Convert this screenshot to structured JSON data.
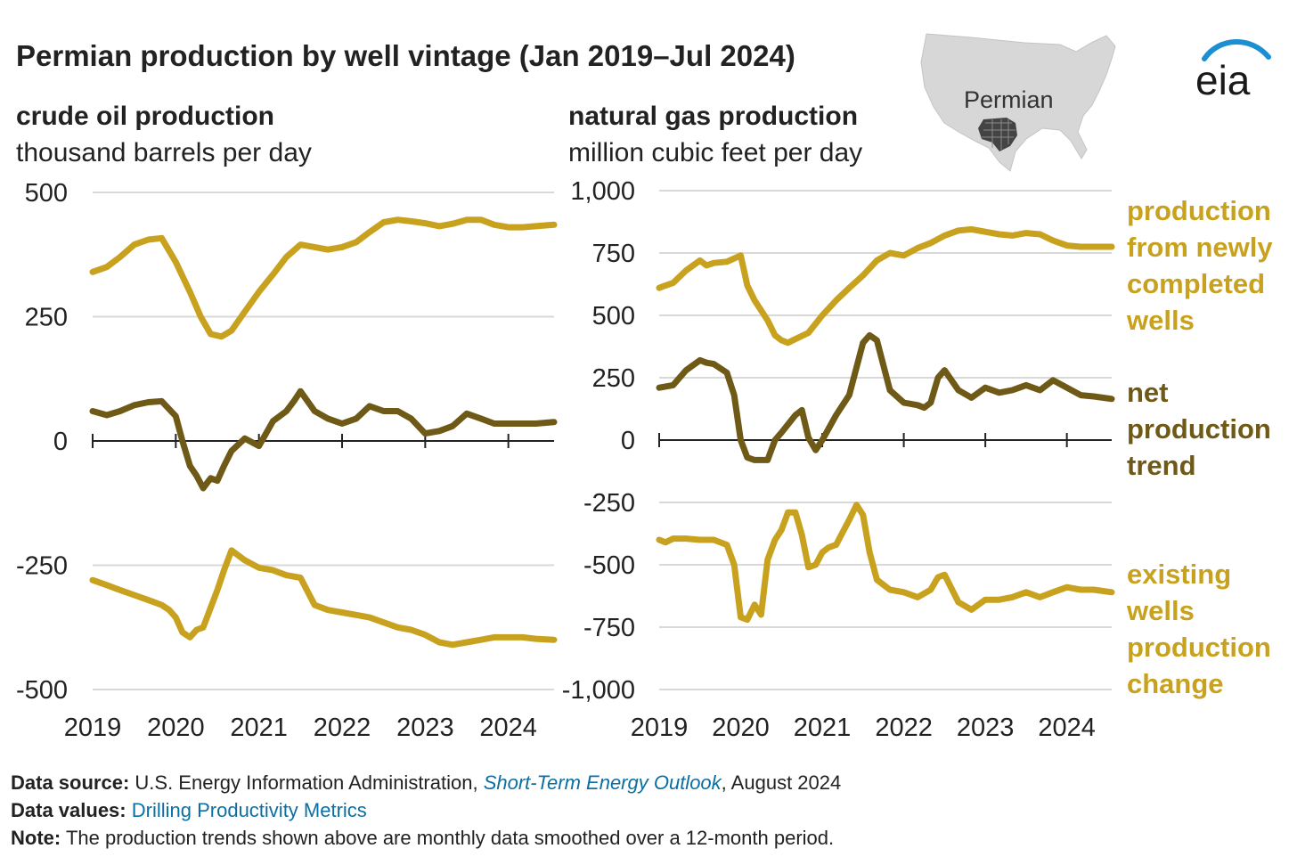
{
  "title": "Permian production by well vintage (Jan 2019–Jul 2024)",
  "logo_text": "eia",
  "map_label": "Permian",
  "legend": {
    "new_wells": "production from newly completed wells",
    "net": "net production trend",
    "existing": "existing wells production change"
  },
  "colors": {
    "new_wells": "#C8A21F",
    "net": "#6E5A16",
    "existing": "#C8A21F",
    "grid": "#d9d9d9",
    "axis": "#222222",
    "link": "#0B6FA4"
  },
  "footnotes": {
    "source_label": "Data source:",
    "source_text_1": "U.S. Energy Information Administration,",
    "source_link": "Short-Term Energy Outlook",
    "source_text_2": ", August 2024",
    "values_label": "Data values:",
    "values_link": "Drilling Productivity Metrics",
    "note_label": "Note:",
    "note_text": "The production trends shown above are monthly data smoothed over a 12-month period."
  },
  "chart_data": [
    {
      "type": "line",
      "title": "crude oil production",
      "ylabel": "thousand barrels per day",
      "ylim": [
        -500,
        500
      ],
      "yticks": [
        500,
        250,
        0,
        -250,
        -500
      ],
      "yticklabels": [
        "500",
        "250",
        "0",
        "-250",
        "-500"
      ],
      "xlim": [
        2019,
        2024.55
      ],
      "xticks": [
        2019,
        2020,
        2021,
        2022,
        2023,
        2024
      ],
      "xticklabels": [
        "2019",
        "2020",
        "2021",
        "2022",
        "2023",
        "2024"
      ],
      "series": [
        {
          "name": "production from newly completed wells",
          "key": "new_wells",
          "x": [
            2019,
            2019.17,
            2019.33,
            2019.5,
            2019.67,
            2019.83,
            2020,
            2020.17,
            2020.3,
            2020.42,
            2020.55,
            2020.67,
            2020.83,
            2021,
            2021.17,
            2021.33,
            2021.5,
            2021.67,
            2021.83,
            2022,
            2022.17,
            2022.33,
            2022.5,
            2022.67,
            2022.83,
            2023,
            2023.17,
            2023.33,
            2023.5,
            2023.67,
            2023.83,
            2024,
            2024.17,
            2024.33,
            2024.55
          ],
          "y": [
            340,
            350,
            370,
            395,
            405,
            408,
            360,
            300,
            250,
            215,
            210,
            222,
            260,
            300,
            335,
            370,
            395,
            390,
            385,
            390,
            400,
            420,
            440,
            445,
            442,
            438,
            432,
            437,
            445,
            445,
            435,
            430,
            430,
            432,
            435
          ]
        },
        {
          "name": "net production trend",
          "key": "net",
          "x": [
            2019,
            2019.17,
            2019.33,
            2019.5,
            2019.67,
            2019.83,
            2020,
            2020.08,
            2020.17,
            2020.25,
            2020.33,
            2020.42,
            2020.5,
            2020.58,
            2020.67,
            2020.83,
            2021,
            2021.17,
            2021.33,
            2021.42,
            2021.5,
            2021.67,
            2021.83,
            2022,
            2022.17,
            2022.33,
            2022.5,
            2022.67,
            2022.83,
            2023,
            2023.17,
            2023.33,
            2023.5,
            2023.67,
            2023.83,
            2024,
            2024.17,
            2024.33,
            2024.55
          ],
          "y": [
            60,
            52,
            60,
            72,
            78,
            80,
            50,
            0,
            -50,
            -70,
            -95,
            -75,
            -80,
            -50,
            -20,
            5,
            -10,
            40,
            60,
            80,
            100,
            60,
            45,
            35,
            45,
            70,
            60,
            60,
            45,
            15,
            20,
            30,
            55,
            45,
            35,
            35,
            35,
            35,
            38
          ]
        },
        {
          "name": "existing wells production change",
          "key": "existing",
          "x": [
            2019,
            2019.17,
            2019.33,
            2019.5,
            2019.67,
            2019.83,
            2019.92,
            2020,
            2020.08,
            2020.17,
            2020.25,
            2020.33,
            2020.5,
            2020.58,
            2020.67,
            2020.83,
            2021,
            2021.17,
            2021.33,
            2021.5,
            2021.67,
            2021.83,
            2022,
            2022.17,
            2022.33,
            2022.5,
            2022.67,
            2022.83,
            2023,
            2023.17,
            2023.33,
            2023.5,
            2023.67,
            2023.83,
            2024,
            2024.17,
            2024.33,
            2024.55
          ],
          "y": [
            -280,
            -290,
            -300,
            -310,
            -320,
            -330,
            -340,
            -355,
            -385,
            -395,
            -380,
            -375,
            -300,
            -260,
            -220,
            -240,
            -255,
            -260,
            -270,
            -275,
            -330,
            -340,
            -345,
            -350,
            -355,
            -365,
            -375,
            -380,
            -390,
            -405,
            -410,
            -405,
            -400,
            -395,
            -395,
            -395,
            -398,
            -400
          ]
        }
      ]
    },
    {
      "type": "line",
      "title": "natural gas production",
      "ylabel": "million cubic feet per day",
      "ylim": [
        -1000,
        1000
      ],
      "yticks": [
        1000,
        750,
        500,
        250,
        0,
        -250,
        -500,
        -750,
        -1000
      ],
      "yticklabels": [
        "1,000",
        "750",
        "500",
        "250",
        "0",
        "-250",
        "-500",
        "-750",
        "-1,000"
      ],
      "xlim": [
        2019,
        2024.55
      ],
      "xticks": [
        2019,
        2020,
        2021,
        2022,
        2023,
        2024
      ],
      "xticklabels": [
        "2019",
        "2020",
        "2021",
        "2022",
        "2023",
        "2024"
      ],
      "series": [
        {
          "name": "production from newly completed wells",
          "key": "new_wells",
          "x": [
            2019,
            2019.08,
            2019.17,
            2019.33,
            2019.5,
            2019.58,
            2019.67,
            2019.83,
            2020,
            2020.08,
            2020.17,
            2020.25,
            2020.33,
            2020.42,
            2020.5,
            2020.58,
            2020.67,
            2020.83,
            2021,
            2021.17,
            2021.33,
            2021.5,
            2021.67,
            2021.83,
            2022,
            2022.17,
            2022.33,
            2022.5,
            2022.67,
            2022.83,
            2023,
            2023.17,
            2023.33,
            2023.5,
            2023.67,
            2023.83,
            2024,
            2024.17,
            2024.33,
            2024.55
          ],
          "y": [
            610,
            620,
            630,
            680,
            720,
            700,
            710,
            715,
            740,
            620,
            560,
            520,
            480,
            420,
            400,
            390,
            405,
            430,
            500,
            560,
            610,
            660,
            720,
            750,
            740,
            770,
            790,
            820,
            840,
            845,
            835,
            825,
            820,
            830,
            825,
            800,
            780,
            775,
            775,
            775
          ]
        },
        {
          "name": "net production trend",
          "key": "net",
          "x": [
            2019,
            2019.17,
            2019.33,
            2019.5,
            2019.58,
            2019.67,
            2019.83,
            2019.92,
            2020,
            2020.08,
            2020.17,
            2020.33,
            2020.42,
            2020.5,
            2020.67,
            2020.75,
            2020.83,
            2020.92,
            2021,
            2021.17,
            2021.33,
            2021.5,
            2021.58,
            2021.67,
            2021.83,
            2022,
            2022.17,
            2022.25,
            2022.33,
            2022.42,
            2022.5,
            2022.67,
            2022.83,
            2023,
            2023.17,
            2023.33,
            2023.5,
            2023.67,
            2023.83,
            2024,
            2024.17,
            2024.33,
            2024.55
          ],
          "y": [
            210,
            220,
            280,
            320,
            310,
            305,
            270,
            180,
            0,
            -70,
            -80,
            -80,
            0,
            30,
            100,
            120,
            10,
            -40,
            0,
            100,
            180,
            390,
            420,
            400,
            200,
            150,
            140,
            130,
            150,
            250,
            280,
            200,
            170,
            210,
            190,
            200,
            220,
            200,
            240,
            210,
            180,
            175,
            165
          ]
        },
        {
          "name": "existing wells production change",
          "key": "existing",
          "x": [
            2019,
            2019.08,
            2019.17,
            2019.33,
            2019.5,
            2019.67,
            2019.83,
            2019.92,
            2020,
            2020.08,
            2020.17,
            2020.25,
            2020.33,
            2020.42,
            2020.5,
            2020.58,
            2020.67,
            2020.75,
            2020.83,
            2020.92,
            2021,
            2021.08,
            2021.17,
            2021.25,
            2021.33,
            2021.42,
            2021.5,
            2021.58,
            2021.67,
            2021.83,
            2022,
            2022.17,
            2022.33,
            2022.42,
            2022.5,
            2022.67,
            2022.83,
            2023,
            2023.17,
            2023.33,
            2023.5,
            2023.67,
            2023.83,
            2024,
            2024.17,
            2024.33,
            2024.55
          ],
          "y": [
            -400,
            -410,
            -395,
            -395,
            -400,
            -400,
            -420,
            -500,
            -710,
            -720,
            -660,
            -700,
            -480,
            -400,
            -360,
            -290,
            -290,
            -380,
            -510,
            -500,
            -450,
            -430,
            -420,
            -370,
            -320,
            -260,
            -300,
            -450,
            -560,
            -600,
            -610,
            -630,
            -600,
            -550,
            -540,
            -650,
            -680,
            -640,
            -640,
            -630,
            -610,
            -630,
            -610,
            -590,
            -600,
            -600,
            -610
          ]
        }
      ]
    }
  ]
}
